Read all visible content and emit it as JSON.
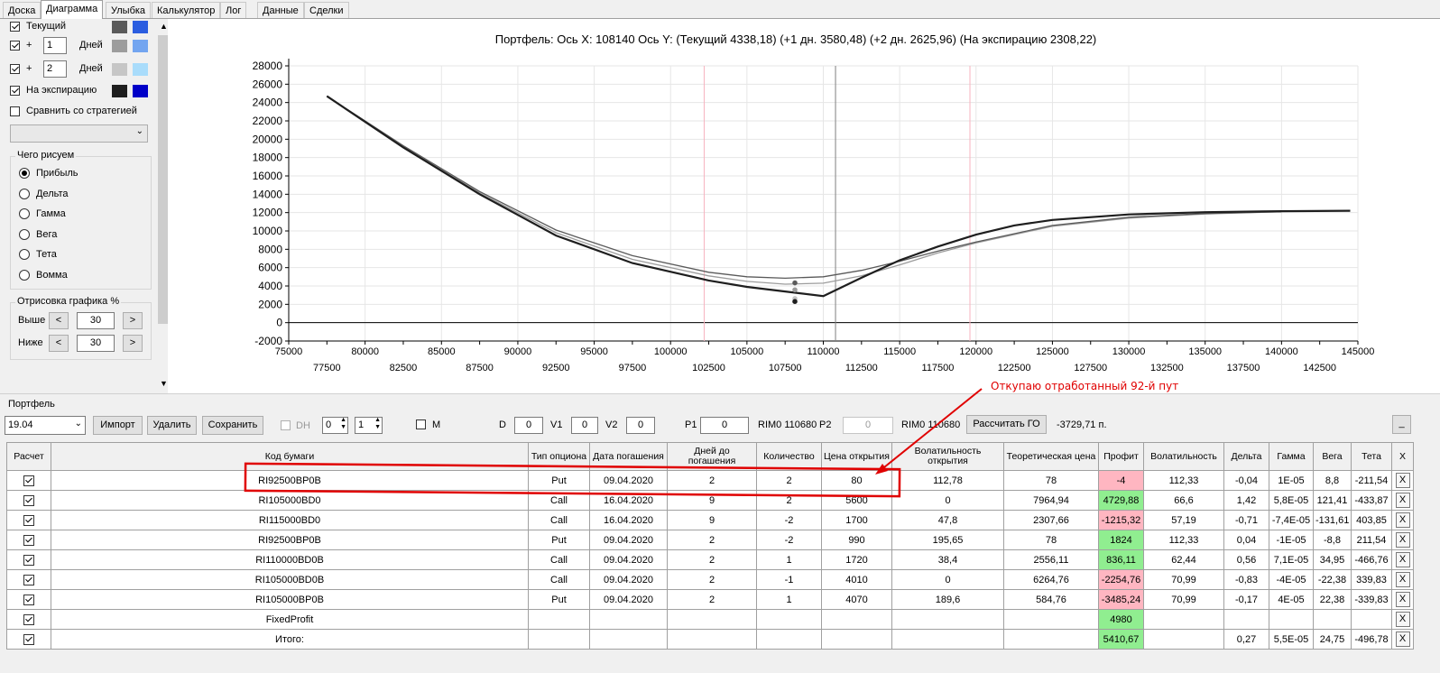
{
  "tabs": [
    {
      "label": "Доска",
      "active": false
    },
    {
      "label": "Диаграмма",
      "active": true
    },
    {
      "label": "Улыбка",
      "active": false
    },
    {
      "label": "Калькулятор",
      "active": false
    },
    {
      "label": "Лог",
      "active": false
    },
    {
      "label": "Данные",
      "active": false
    },
    {
      "label": "Сделки",
      "active": false
    }
  ],
  "left_panel": {
    "current_label": "Текущий",
    "plus_label": "+",
    "days_label": "Дней",
    "plus1_value": "1",
    "plus2_value": "2",
    "expiration_label": "На экспирацию",
    "compare_label": "Сравнить со стратегией",
    "strategy_value": "",
    "colors": {
      "current": [
        "#5a5a5a",
        "#2b5de0"
      ],
      "plus1": [
        "#9c9c9c",
        "#73a5f0"
      ],
      "plus2": [
        "#c6c6c6",
        "#a9dcfb"
      ],
      "expiration": [
        "#1e1e1e",
        "#0000c8"
      ]
    },
    "what_group": "Чего рисуем",
    "options": [
      "Прибыль",
      "Дельта",
      "Гамма",
      "Вега",
      "Тета",
      "Вомма"
    ],
    "selected_option": "Прибыль",
    "draw_group": "Отрисовка графика %",
    "above_label": "Выше",
    "below_label": "Ниже",
    "above_value": "30",
    "below_value": "30",
    "btn_dec": "<",
    "btn_inc": ">"
  },
  "chart_data": {
    "type": "line",
    "title": "Портфель:  Ось X:  108140 Ось Y:  (Текущий 4338,18)  (+1 дн. 3580,48)  (+2 дн. 2625,96)  (На экспирацию 2308,22)",
    "xlim": [
      75000,
      145000
    ],
    "ylim": [
      -2000,
      28000
    ],
    "x_ticks_upper": [
      75000,
      80000,
      85000,
      90000,
      95000,
      100000,
      105000,
      110000,
      115000,
      120000,
      125000,
      130000,
      135000,
      140000,
      145000
    ],
    "x_ticks_lower": [
      77500,
      82500,
      87500,
      92500,
      97500,
      102500,
      107500,
      112500,
      117500,
      122500,
      127500,
      132500,
      137500,
      142500
    ],
    "y_ticks": [
      -2000,
      0,
      2000,
      4000,
      6000,
      8000,
      10000,
      12000,
      14000,
      16000,
      18000,
      20000,
      22000,
      24000,
      26000,
      28000
    ],
    "grid": true,
    "vlines": [
      {
        "x": 102200,
        "color": "#f7b3bf"
      },
      {
        "x": 110800,
        "color": "#808080"
      },
      {
        "x": 119600,
        "color": "#f7b3bf"
      }
    ],
    "series": [
      {
        "color": "#1e1e1e",
        "x": [
          77500,
          82500,
          87500,
          92500,
          97500,
          102500,
          105000,
          107500,
          110000,
          112500,
          115000,
          117500,
          120000,
          122500,
          125000,
          130000,
          135000,
          140000,
          144500
        ],
        "y": [
          24700,
          19100,
          14000,
          9500,
          6500,
          4600,
          3900,
          3400,
          2900,
          4900,
          6800,
          8300,
          9600,
          10600,
          11200,
          11800,
          12050,
          12150,
          12200
        ]
      },
      {
        "color": "#5a5a5a",
        "x": [
          77500,
          82500,
          87500,
          92500,
          97500,
          102500,
          105000,
          107500,
          110000,
          112500,
          115000,
          117500,
          120000,
          125000,
          130000,
          135000,
          140000
        ],
        "y": [
          24700,
          19300,
          14300,
          10100,
          7300,
          5500,
          5000,
          4850,
          5000,
          5700,
          6700,
          7800,
          8800,
          10600,
          11500,
          11900,
          12100
        ]
      },
      {
        "color": "#9c9c9c",
        "x": [
          77500,
          82500,
          87500,
          92500,
          97500,
          102500,
          105000,
          107500,
          110000,
          112500,
          115000,
          117500,
          120000,
          125000,
          130000,
          135000,
          140000
        ],
        "y": [
          24700,
          19200,
          14150,
          9800,
          6900,
          5100,
          4500,
          4200,
          4300,
          5100,
          6300,
          7600,
          8700,
          10500,
          11400,
          11850,
          12100
        ]
      }
    ],
    "points": [
      {
        "x": 108140,
        "y": 4338.18,
        "color": "#5a5a5a"
      },
      {
        "x": 108140,
        "y": 3580.48,
        "color": "#9c9c9c"
      },
      {
        "x": 108140,
        "y": 2625.96,
        "color": "#c6c6c6"
      },
      {
        "x": 108140,
        "y": 2308.22,
        "color": "#1e1e1e"
      }
    ]
  },
  "portfolio": {
    "group_label": "Портфель",
    "date_value": "19.04",
    "import": "Импорт",
    "delete": "Удалить",
    "save": "Сохранить",
    "dh_label": "DH",
    "dh_val1": "0",
    "dh_val2": "1",
    "m_label": "M",
    "d_label": "D",
    "d_value": "0",
    "v1_label": "V1",
    "v1_value": "0",
    "v2_label": "V2",
    "v2_value": "0",
    "p1_label": "P1",
    "p1_value": "0",
    "rim1": "RIM0 110680",
    "p2_label": "P2",
    "p2_value": "0",
    "rim2": "RIM0 110680",
    "calc_go": "Рассчитать ГО",
    "go_value": "-3729,71 п.",
    "underscore_btn": "_"
  },
  "annotation": {
    "text": "Откупаю отработанный 92-й пут"
  },
  "table": {
    "headers": [
      "Расчет",
      "Код бумаги",
      "Тип опциона",
      "Дата погашения",
      "Дней до погашения",
      "Количество",
      "Цена открытия",
      "Волатильность открытия",
      "Теоретическая цена",
      "Профит",
      "Волатильность",
      "Дельта",
      "Гамма",
      "Вега",
      "Тета",
      "X"
    ],
    "rows": [
      {
        "code": "RI92500BP0B",
        "type": "Put",
        "date": "09.04.2020",
        "days": "2",
        "qty": "2",
        "price": "80",
        "vol_open": "112,78",
        "theo": "78",
        "profit": "-4",
        "profit_sign": "neg",
        "vol": "112,33",
        "delta": "-0,04",
        "gamma": "1E-05",
        "vega": "8,8",
        "theta": "-211,54",
        "x": "X"
      },
      {
        "code": "RI105000BD0",
        "type": "Call",
        "date": "16.04.2020",
        "days": "9",
        "qty": "2",
        "price": "5600",
        "vol_open": "0",
        "theo": "7964,94",
        "profit": "4729,88",
        "profit_sign": "pos",
        "vol": "66,6",
        "delta": "1,42",
        "gamma": "5,8E-05",
        "vega": "121,41",
        "theta": "-433,87",
        "x": "X"
      },
      {
        "code": "RI115000BD0",
        "type": "Call",
        "date": "16.04.2020",
        "days": "9",
        "qty": "-2",
        "price": "1700",
        "vol_open": "47,8",
        "theo": "2307,66",
        "profit": "-1215,32",
        "profit_sign": "neg",
        "vol": "57,19",
        "delta": "-0,71",
        "gamma": "-7,4E-05",
        "vega": "-131,61",
        "theta": "403,85",
        "x": "X"
      },
      {
        "code": "RI92500BP0B",
        "type": "Put",
        "date": "09.04.2020",
        "days": "2",
        "qty": "-2",
        "price": "990",
        "vol_open": "195,65",
        "theo": "78",
        "profit": "1824",
        "profit_sign": "pos",
        "vol": "112,33",
        "delta": "0,04",
        "gamma": "-1E-05",
        "vega": "-8,8",
        "theta": "211,54",
        "x": "X"
      },
      {
        "code": "RI110000BD0B",
        "type": "Call",
        "date": "09.04.2020",
        "days": "2",
        "qty": "1",
        "price": "1720",
        "vol_open": "38,4",
        "theo": "2556,11",
        "profit": "836,11",
        "profit_sign": "pos",
        "vol": "62,44",
        "delta": "0,56",
        "gamma": "7,1E-05",
        "vega": "34,95",
        "theta": "-466,76",
        "x": "X"
      },
      {
        "code": "RI105000BD0B",
        "type": "Call",
        "date": "09.04.2020",
        "days": "2",
        "qty": "-1",
        "price": "4010",
        "vol_open": "0",
        "theo": "6264,76",
        "profit": "-2254,76",
        "profit_sign": "neg",
        "vol": "70,99",
        "delta": "-0,83",
        "gamma": "-4E-05",
        "vega": "-22,38",
        "theta": "339,83",
        "x": "X"
      },
      {
        "code": "RI105000BP0B",
        "type": "Put",
        "date": "09.04.2020",
        "days": "2",
        "qty": "1",
        "price": "4070",
        "vol_open": "189,6",
        "theo": "584,76",
        "profit": "-3485,24",
        "profit_sign": "neg",
        "vol": "70,99",
        "delta": "-0,17",
        "gamma": "4E-05",
        "vega": "22,38",
        "theta": "-339,83",
        "x": "X"
      },
      {
        "code": "FixedProfit",
        "type": "",
        "date": "",
        "days": "",
        "qty": "",
        "price": "",
        "vol_open": "",
        "theo": "",
        "profit": "4980",
        "profit_sign": "pos",
        "vol": "",
        "delta": "",
        "gamma": "",
        "vega": "",
        "theta": "",
        "x": "X"
      },
      {
        "code": "Итого:",
        "type": "",
        "date": "",
        "days": "",
        "qty": "",
        "price": "",
        "vol_open": "",
        "theo": "",
        "profit": "5410,67",
        "profit_sign": "pos",
        "vol": "",
        "delta": "0,27",
        "gamma": "5,5E-05",
        "vega": "24,75",
        "theta": "-496,78",
        "x": "X"
      }
    ]
  }
}
